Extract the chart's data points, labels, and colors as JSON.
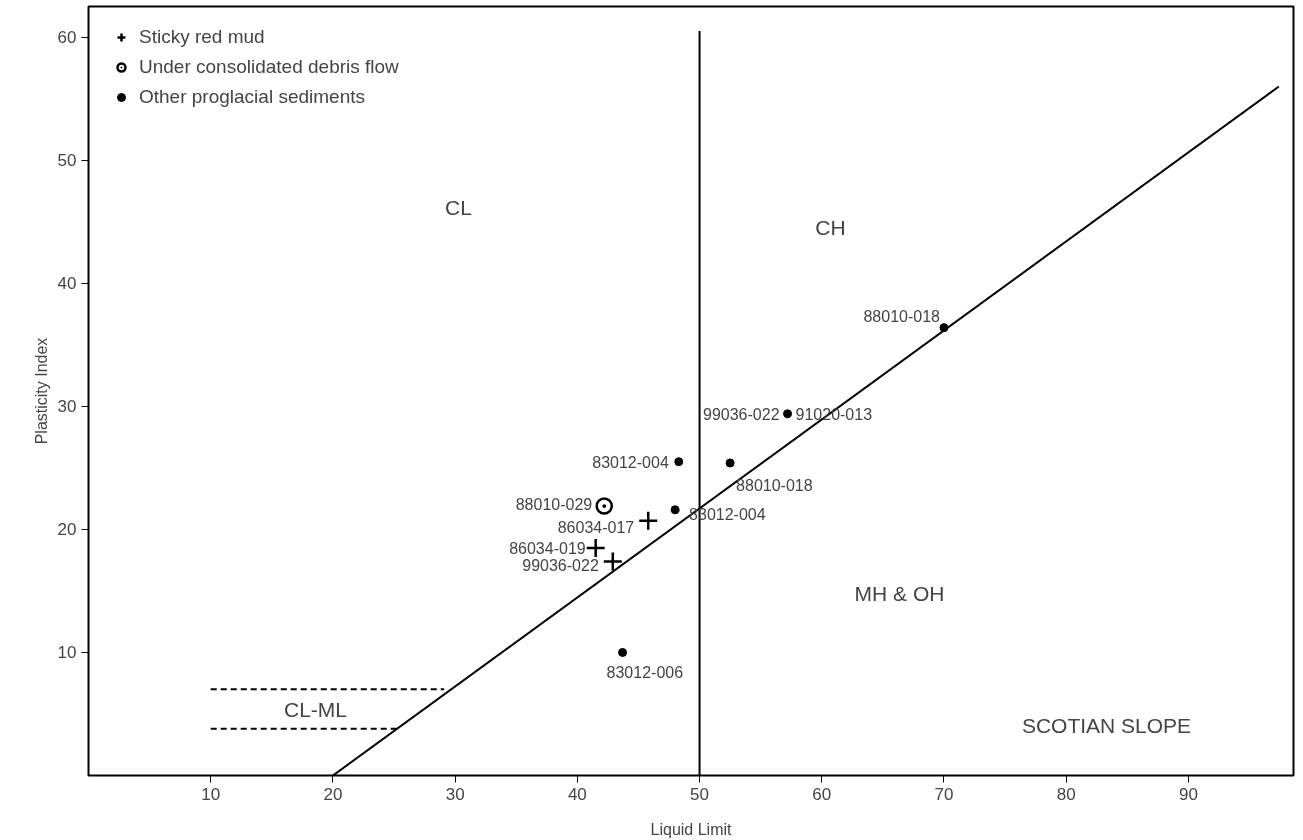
{
  "chart_data": {
    "type": "scatter",
    "xlabel": "Liquid Limit",
    "ylabel": "Plasticity Index",
    "xlim": [
      0,
      98.6
    ],
    "ylim": [
      0,
      62.5
    ],
    "xticks": [
      10,
      20,
      30,
      40,
      50,
      60,
      70,
      80,
      90
    ],
    "yticks": [
      10,
      20,
      30,
      40,
      50,
      60
    ],
    "grid": false,
    "legend": "top left",
    "series": [
      {
        "name": "Sticky red mud",
        "color": "#000000",
        "marker": "cross",
        "x": [
          45.8,
          41.5,
          42.9
        ],
        "values": [
          20.7,
          18.5,
          17.4
        ]
      },
      {
        "name": "Under consolidated debris flow",
        "color": "#000000",
        "marker": "circle_dot",
        "x": [
          42.2
        ],
        "values": [
          21.9
        ]
      },
      {
        "name": "Other proglacial sediments",
        "color": "#000000",
        "marker": "circle",
        "x": [
          48.3,
          52.5,
          48.0,
          43.7,
          57.2,
          70.0
        ],
        "values": [
          25.5,
          25.4,
          21.6,
          10.0,
          29.4,
          36.4
        ]
      },
      {
        "type": "line",
        "color": "#000000",
        "line_style": "solid",
        "x": [
          20,
          97.4
        ],
        "values": [
          0,
          56
        ]
      },
      {
        "type": "line",
        "color": "#000000",
        "line_style": "solid",
        "x": [
          50,
          50
        ],
        "values": [
          0,
          60.5
        ]
      },
      {
        "type": "line",
        "color": "#000000",
        "line_style": "dashed",
        "x": [
          10,
          29.1
        ],
        "values": [
          7,
          7
        ]
      },
      {
        "type": "line",
        "color": "#000000",
        "line_style": "dashed",
        "x": [
          10,
          25.3
        ],
        "values": [
          3.8,
          3.8
        ]
      }
    ],
    "annotations": [
      {
        "text": "83012-004",
        "x": 48.3,
        "y": 25.5
      },
      {
        "text": "88010-018",
        "x": 52.5,
        "y": 25.4
      },
      {
        "text": "88010-029",
        "x": 42.2,
        "y": 21.9
      },
      {
        "text": "83012-004",
        "x": 48.0,
        "y": 21.6
      },
      {
        "text": "86034-017",
        "x": 45.8,
        "y": 20.7
      },
      {
        "text": "86034-019",
        "x": 41.5,
        "y": 18.5
      },
      {
        "text": "99036-022",
        "x": 42.9,
        "y": 17.4
      },
      {
        "text": "83012-006",
        "x": 43.7,
        "y": 10.0
      },
      {
        "text": "99036-022",
        "x": 57.2,
        "y": 29.4
      },
      {
        "text": "91020-013",
        "x": 57.2,
        "y": 29.4
      },
      {
        "text": "88010-018",
        "x": 70.0,
        "y": 36.4
      },
      "CL",
      "CH",
      "MH & OH",
      "CL-ML",
      "SCOTIAN SLOPE"
    ]
  }
}
